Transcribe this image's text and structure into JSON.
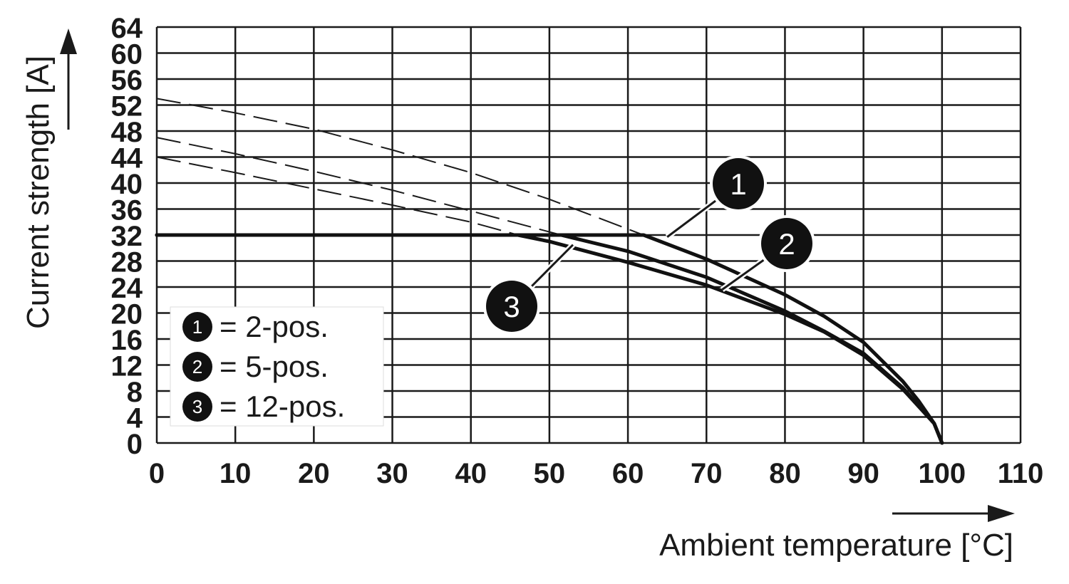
{
  "chart_data": {
    "type": "line",
    "xlabel": "Ambient temperature [°C]",
    "ylabel": "Current strength [A]",
    "xlim": [
      0,
      110
    ],
    "ylim": [
      0,
      64
    ],
    "x_ticks": [
      "0",
      "10",
      "20",
      "30",
      "40",
      "50",
      "60",
      "70",
      "80",
      "90",
      "100",
      "110"
    ],
    "y_ticks": [
      "0",
      "4",
      "8",
      "12",
      "16",
      "20",
      "24",
      "28",
      "32",
      "36",
      "40",
      "44",
      "48",
      "52",
      "56",
      "60",
      "64"
    ],
    "grid": true,
    "legend_position": "bottom-left",
    "legend": [
      {
        "marker": "1",
        "text": "= 2-pos."
      },
      {
        "marker": "2",
        "text": "= 5-pos."
      },
      {
        "marker": "3",
        "text": "= 12-pos."
      }
    ],
    "series": [
      {
        "marker": "1",
        "solid": {
          "x": [
            0,
            62,
            70,
            80,
            85,
            90,
            95,
            97,
            99,
            100
          ],
          "y": [
            32,
            32,
            28.3,
            22.8,
            19.5,
            15.5,
            9.5,
            6.5,
            3,
            0
          ]
        },
        "dashed": {
          "x": [
            0,
            10,
            20,
            30,
            40,
            50,
            62
          ],
          "y": [
            53,
            50.8,
            48.3,
            45.1,
            41.6,
            37.5,
            32
          ]
        }
      },
      {
        "marker": "2",
        "solid": {
          "x": [
            0,
            51.5,
            60,
            70,
            80,
            85,
            90,
            95,
            99,
            100
          ],
          "y": [
            32,
            32,
            29.5,
            25.5,
            20.3,
            17.2,
            13.8,
            8.5,
            3,
            0
          ]
        },
        "dashed": {
          "x": [
            0,
            10,
            20,
            30,
            40,
            51.5
          ],
          "y": [
            47,
            44.5,
            41.8,
            38.9,
            35.7,
            32
          ]
        }
      },
      {
        "marker": "3",
        "solid": {
          "x": [
            0,
            46,
            50,
            60,
            70,
            80,
            85,
            90,
            95,
            99,
            100
          ],
          "y": [
            32,
            32,
            31,
            27.8,
            24.3,
            19.8,
            17.1,
            13.5,
            8.3,
            3,
            0
          ]
        },
        "dashed": {
          "x": [
            0,
            10,
            20,
            30,
            40,
            46
          ],
          "y": [
            44,
            41.6,
            39.1,
            36.6,
            34,
            32
          ]
        }
      }
    ],
    "callouts": [
      {
        "marker": "1",
        "at": [
          65,
          31.7
        ]
      },
      {
        "marker": "2",
        "at": [
          72,
          23.6
        ]
      },
      {
        "marker": "3",
        "at": [
          53,
          30.5
        ]
      }
    ]
  }
}
